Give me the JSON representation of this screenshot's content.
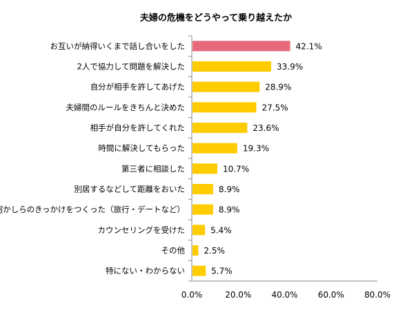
{
  "chart_data": {
    "type": "bar",
    "orientation": "horizontal",
    "title": "夫婦の危機をどうやって乗り越えたか",
    "xlabel": "",
    "ylabel": "",
    "categories": [
      "お互いが納得いくまで話し合いをした",
      "2人で協力して問題を解決した",
      "自分が相手を許してあげた",
      "夫婦間のルールをきちんと決めた",
      "相手が自分を許してくれた",
      "時間に解決してもらった",
      "第三者に相談した",
      "別居するなどして距離をおいた",
      "何かしらのきっかけをつくった（旅行・デートなど）",
      "カウンセリングを受けた",
      "その他",
      "特にない・わからない"
    ],
    "values": [
      42.1,
      33.9,
      28.9,
      27.5,
      23.6,
      19.3,
      10.7,
      8.9,
      8.9,
      5.4,
      2.5,
      5.7
    ],
    "value_labels": [
      "42.1%",
      "33.9%",
      "28.9%",
      "27.5%",
      "23.6%",
      "19.3%",
      "10.7%",
      "8.9%",
      "8.9%",
      "5.4%",
      "2.5%",
      "5.7%"
    ],
    "xlim": [
      0,
      80
    ],
    "xticks": [
      0,
      20,
      40,
      60,
      80
    ],
    "xtick_labels": [
      "0.0%",
      "20.0%",
      "40.0%",
      "60.0%",
      "80.0%"
    ],
    "grid": false,
    "legend": "none",
    "highlight_index": 0,
    "colors": {
      "highlight": "#E66A7A",
      "bar": "#FFCC00",
      "axis": "#888888"
    }
  }
}
